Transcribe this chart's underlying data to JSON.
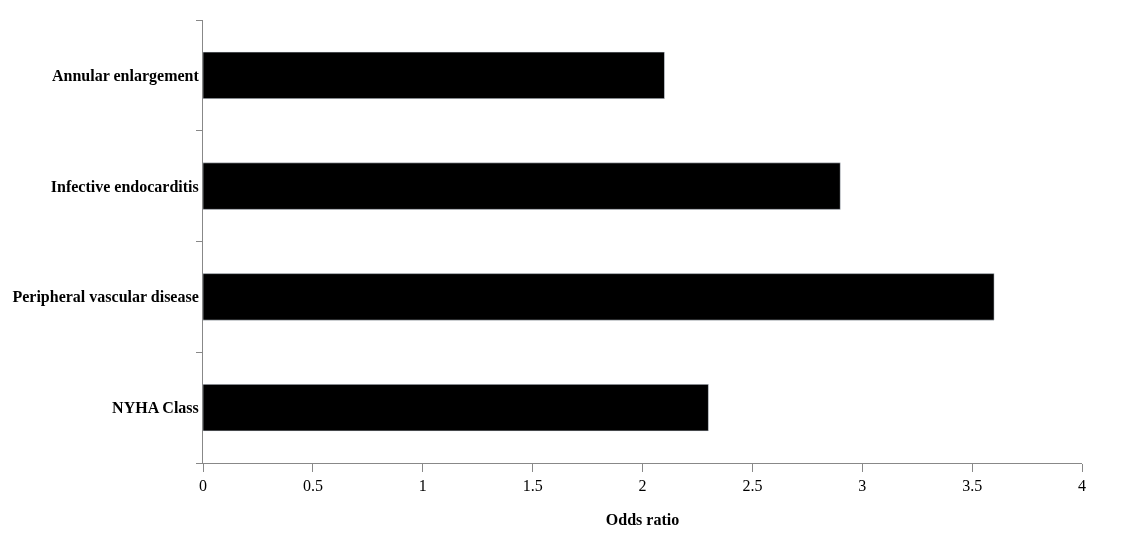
{
  "chart_data": {
    "type": "bar",
    "orientation": "horizontal",
    "xlabel": "Odds ratio",
    "categories": [
      "Annular enlargement",
      "Infective endocarditis",
      "Peripheral vascular disease",
      "NYHA Class"
    ],
    "values": [
      2.1,
      2.9,
      3.6,
      2.3
    ],
    "color": "#000000",
    "xlim": [
      0,
      4
    ],
    "xticks": [
      0,
      0.5,
      1,
      1.5,
      2,
      2.5,
      3,
      3.5,
      4
    ]
  }
}
